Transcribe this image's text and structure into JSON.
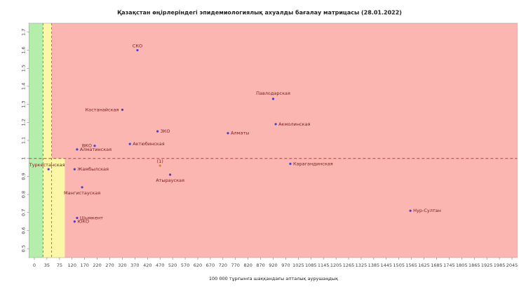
{
  "chart_data": {
    "type": "scatter",
    "title": "Қазақстан өңірлеріндегі эпидемиологиялық ахуалды бағалау матрицасы  (28.01.2022)",
    "x_label": "100 000 тұрғынға шаққандағы апталық аурушаңдық",
    "xlim": [
      -15,
      2070
    ],
    "ylim": [
      0.45,
      1.75
    ],
    "xticks": [
      0,
      35,
      75,
      120,
      170,
      220,
      270,
      320,
      370,
      420,
      470,
      520,
      570,
      620,
      670,
      720,
      770,
      820,
      870,
      920,
      970,
      1025,
      1085,
      1145,
      1205,
      1265,
      1325,
      1385,
      1445,
      1505,
      1565,
      1625,
      1685,
      1745,
      1805,
      1865,
      1925,
      1985,
      2045
    ],
    "yticks": [
      0.5,
      0.6,
      0.7,
      0.8,
      0.9,
      1,
      1.1,
      1.2,
      1.3,
      1.4,
      1.5,
      1.6,
      1.7
    ],
    "hline": 1,
    "vlines": [
      24,
      50
    ],
    "regions": {
      "green": [
        -15,
        24
      ],
      "yellow_upper": [
        24,
        50
      ],
      "yellow_lower": [
        24,
        94
      ],
      "colors": {
        "green": "#b3eeaa",
        "yellow": "#fbf7a6",
        "red": "#fbb6b1"
      }
    },
    "point_color": "#4b3fcf",
    "points": [
      {
        "name": "СКО",
        "x": 380,
        "y": 1.6
      },
      {
        "name": "Павлодарская",
        "x": 920,
        "y": 1.33
      },
      {
        "name": "Костанайская",
        "x": 320,
        "y": 1.27
      },
      {
        "name": "Акмолинская",
        "x": 930,
        "y": 1.19
      },
      {
        "name": "ЗКО",
        "x": 460,
        "y": 1.15
      },
      {
        "name": "Алматы",
        "x": 740,
        "y": 1.14
      },
      {
        "name": "Актюбинская",
        "x": 350,
        "y": 1.08
      },
      {
        "name": "ВКО",
        "x": 210,
        "y": 1.07
      },
      {
        "name": "Алматинская",
        "x": 140,
        "y": 1.05
      },
      {
        "name": "Карагандинская",
        "x": 990,
        "y": 0.97
      },
      {
        "name": "(1)",
        "x": 470,
        "y": 0.96,
        "color": "#e67e22"
      },
      {
        "name": "Туркестанская",
        "x": 40,
        "y": 0.94
      },
      {
        "name": "Жамбылская",
        "x": 130,
        "y": 0.94
      },
      {
        "name": "Атырауская",
        "x": 510,
        "y": 0.91
      },
      {
        "name": "Мангистауская",
        "x": 160,
        "y": 0.84
      },
      {
        "name": "Нур-Султан",
        "x": 1560,
        "y": 0.71
      },
      {
        "name": "Шымкент",
        "x": 140,
        "y": 0.67
      },
      {
        "name": "ЮКО",
        "x": 130,
        "y": 0.65
      }
    ]
  }
}
